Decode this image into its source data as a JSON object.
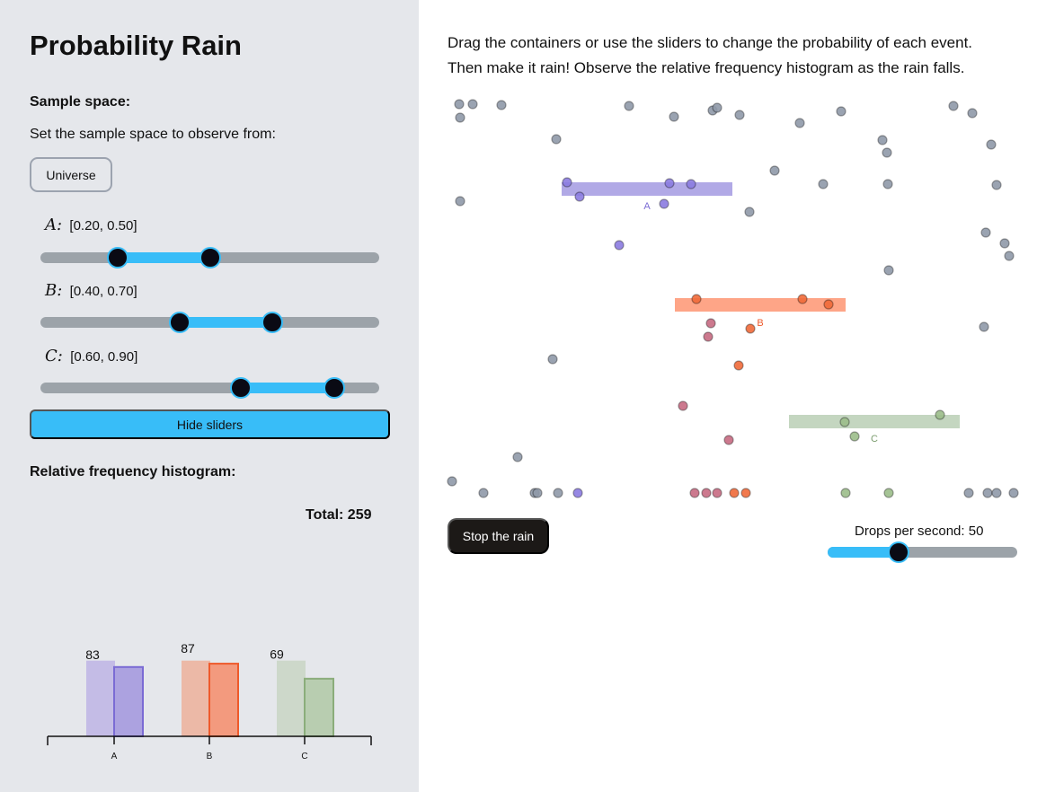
{
  "sidebar": {
    "title": "Probability Rain",
    "sample_space_heading": "Sample space:",
    "sample_space_desc": "Set the sample space to observe from:",
    "universe_button": "Universe",
    "events": [
      {
        "var": "A",
        "sep": ":",
        "range_text": "[0.20, 0.50]",
        "low": 0.2,
        "high": 0.5
      },
      {
        "var": "B",
        "sep": ":",
        "range_text": "[0.40, 0.70]",
        "low": 0.4,
        "high": 0.7
      },
      {
        "var": "C",
        "sep": ":",
        "range_text": "[0.60, 0.90]",
        "low": 0.6,
        "high": 0.9
      }
    ],
    "hide_sliders_button": "Hide sliders",
    "histogram_heading": "Relative frequency histogram:",
    "total_text": "Total: 259"
  },
  "chart_data": {
    "type": "bar",
    "categories": [
      "A",
      "B",
      "C"
    ],
    "series": [
      {
        "values": [
          0.35,
          0.35,
          0.35
        ]
      },
      {
        "values": [
          83,
          87,
          69
        ]
      }
    ],
    "data_labels": [
      "83",
      "87",
      "69"
    ],
    "total": 259,
    "colors": {
      "A": {
        "light": "#c4bce6",
        "fill": "#aca2e0",
        "stroke": "#7b6bd4"
      },
      "B": {
        "light": "#ecb9a7",
        "fill": "#f39a7e",
        "stroke": "#ee5a2b"
      },
      "C": {
        "light": "#cdd8ca",
        "fill": "#b8cdb0",
        "stroke": "#8bad7b"
      }
    }
  },
  "main": {
    "instructions_line1": "Drag the containers or use the sliders to change the probability of each event.",
    "instructions_line2": "Then make it rain! Observe the relative frequency histogram as the rain falls.",
    "containers": [
      {
        "label": "A",
        "color": "#b1a9e6"
      },
      {
        "label": "B",
        "color": "#fea587"
      },
      {
        "label": "C",
        "color": "#c4d6c0"
      }
    ],
    "stop_button": "Stop the rain",
    "drops_per_second_label": "Drops per second: 50",
    "drops_per_second": 50,
    "drops_per_second_fraction": 0.35
  },
  "colors": {
    "sidebar_bg": "#e5e7eb",
    "accent": "#38bdf8",
    "track": "#9ca3a9",
    "drop_gray": "#8f99a8",
    "drop_a": "#8b7be0",
    "drop_b_hit": "#f06a3a",
    "drop_b_miss": "#c76a82",
    "drop_c": "#9bbd8a"
  }
}
